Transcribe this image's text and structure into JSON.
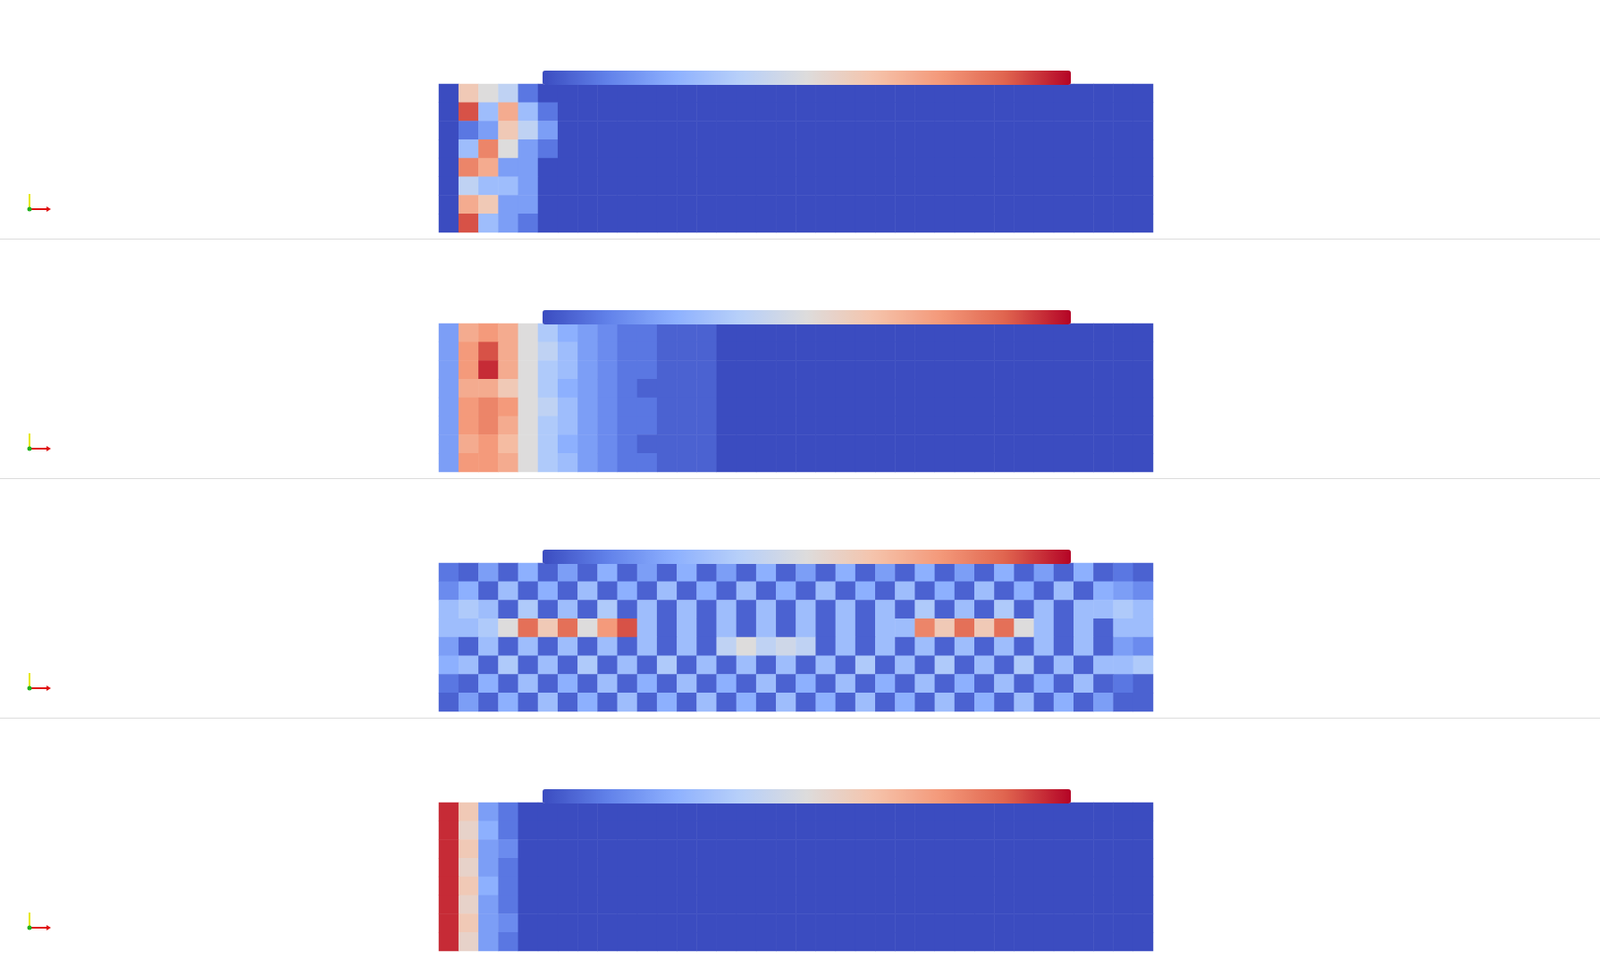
{
  "chart_data": [
    {
      "type": "heatmap",
      "tick_labels": false,
      "color_range": [
        0,
        1
      ],
      "cells": [
        [
          0,
          0.6,
          0.5,
          0.4,
          0.1,
          0,
          0,
          0,
          0,
          0,
          0,
          0,
          0,
          0,
          0,
          0,
          0,
          0,
          0,
          0,
          0,
          0,
          0,
          0,
          0,
          0,
          0,
          0,
          0,
          0,
          0,
          0,
          0,
          0,
          0,
          0
        ],
        [
          0,
          0.9,
          0.3,
          0.7,
          0.3,
          0.1,
          0,
          0,
          0,
          0,
          0,
          0,
          0,
          0,
          0,
          0,
          0,
          0,
          0,
          0,
          0,
          0,
          0,
          0,
          0,
          0,
          0,
          0,
          0,
          0,
          0,
          0,
          0,
          0,
          0,
          0
        ],
        [
          0,
          0.1,
          0.2,
          0.6,
          0.4,
          0.2,
          0,
          0,
          0,
          0,
          0,
          0,
          0,
          0,
          0,
          0,
          0,
          0,
          0,
          0,
          0,
          0,
          0,
          0,
          0,
          0,
          0,
          0,
          0,
          0,
          0,
          0,
          0,
          0,
          0,
          0
        ],
        [
          0,
          0.3,
          0.8,
          0.5,
          0.2,
          0.1,
          0,
          0,
          0,
          0,
          0,
          0,
          0,
          0,
          0,
          0,
          0,
          0,
          0,
          0,
          0,
          0,
          0,
          0,
          0,
          0,
          0,
          0,
          0,
          0,
          0,
          0,
          0,
          0,
          0,
          0
        ],
        [
          0,
          0.8,
          0.7,
          0.2,
          0.2,
          0,
          0,
          0,
          0,
          0,
          0,
          0,
          0,
          0,
          0,
          0,
          0,
          0,
          0,
          0,
          0,
          0,
          0,
          0,
          0,
          0,
          0,
          0,
          0,
          0,
          0,
          0,
          0,
          0,
          0,
          0
        ],
        [
          0,
          0.4,
          0.3,
          0.3,
          0.2,
          0,
          0,
          0,
          0,
          0,
          0,
          0,
          0,
          0,
          0,
          0,
          0,
          0,
          0,
          0,
          0,
          0,
          0,
          0,
          0,
          0,
          0,
          0,
          0,
          0,
          0,
          0,
          0,
          0,
          0,
          0
        ],
        [
          0,
          0.7,
          0.6,
          0.2,
          0.2,
          0,
          0,
          0,
          0,
          0,
          0,
          0,
          0,
          0,
          0,
          0,
          0,
          0,
          0,
          0,
          0,
          0,
          0,
          0,
          0,
          0,
          0,
          0,
          0,
          0,
          0,
          0,
          0,
          0,
          0,
          0
        ],
        [
          0,
          0.9,
          0.3,
          0.2,
          0.1,
          0,
          0,
          0,
          0,
          0,
          0,
          0,
          0,
          0,
          0,
          0,
          0,
          0,
          0,
          0,
          0,
          0,
          0,
          0,
          0,
          0,
          0,
          0,
          0,
          0,
          0,
          0,
          0,
          0,
          0,
          0
        ]
      ]
    },
    {
      "type": "heatmap",
      "tick_labels": false,
      "color_range": [
        0,
        1
      ],
      "cells": [
        [
          0.2,
          0.7,
          0.75,
          0.7,
          0.5,
          0.35,
          0.25,
          0.2,
          0.15,
          0.1,
          0.1,
          0.05,
          0.05,
          0.05,
          0,
          0,
          0,
          0,
          0,
          0,
          0,
          0,
          0,
          0,
          0,
          0,
          0,
          0,
          0,
          0,
          0,
          0,
          0,
          0,
          0,
          0
        ],
        [
          0.2,
          0.75,
          0.9,
          0.7,
          0.5,
          0.4,
          0.3,
          0.2,
          0.15,
          0.1,
          0.1,
          0.05,
          0.05,
          0.05,
          0,
          0,
          0,
          0,
          0,
          0,
          0,
          0,
          0,
          0,
          0,
          0,
          0,
          0,
          0,
          0,
          0,
          0,
          0,
          0,
          0,
          0
        ],
        [
          0.2,
          0.75,
          0.95,
          0.7,
          0.5,
          0.35,
          0.3,
          0.2,
          0.15,
          0.1,
          0.1,
          0.05,
          0.05,
          0.05,
          0,
          0,
          0,
          0,
          0,
          0,
          0,
          0,
          0,
          0,
          0,
          0,
          0,
          0,
          0,
          0,
          0,
          0,
          0,
          0,
          0,
          0
        ],
        [
          0.2,
          0.7,
          0.7,
          0.6,
          0.5,
          0.35,
          0.25,
          0.2,
          0.15,
          0.1,
          0.05,
          0.05,
          0.05,
          0.05,
          0,
          0,
          0,
          0,
          0,
          0,
          0,
          0,
          0,
          0,
          0,
          0,
          0,
          0,
          0,
          0,
          0,
          0,
          0,
          0,
          0,
          0
        ],
        [
          0.2,
          0.75,
          0.8,
          0.75,
          0.5,
          0.4,
          0.3,
          0.2,
          0.15,
          0.1,
          0.1,
          0.05,
          0.05,
          0.05,
          0,
          0,
          0,
          0,
          0,
          0,
          0,
          0,
          0,
          0,
          0,
          0,
          0,
          0,
          0,
          0,
          0,
          0,
          0,
          0,
          0,
          0
        ],
        [
          0.2,
          0.75,
          0.8,
          0.7,
          0.5,
          0.35,
          0.3,
          0.2,
          0.15,
          0.1,
          0.1,
          0.05,
          0.05,
          0.05,
          0,
          0,
          0,
          0,
          0,
          0,
          0,
          0,
          0,
          0,
          0,
          0,
          0,
          0,
          0,
          0,
          0,
          0,
          0,
          0,
          0,
          0
        ],
        [
          0.2,
          0.7,
          0.75,
          0.65,
          0.5,
          0.35,
          0.25,
          0.2,
          0.15,
          0.1,
          0.05,
          0.05,
          0.05,
          0.05,
          0,
          0,
          0,
          0,
          0,
          0,
          0,
          0,
          0,
          0,
          0,
          0,
          0,
          0,
          0,
          0,
          0,
          0,
          0,
          0,
          0,
          0
        ],
        [
          0.2,
          0.75,
          0.75,
          0.7,
          0.5,
          0.35,
          0.3,
          0.2,
          0.15,
          0.1,
          0.1,
          0.05,
          0.05,
          0.05,
          0,
          0,
          0,
          0,
          0,
          0,
          0,
          0,
          0,
          0,
          0,
          0,
          0,
          0,
          0,
          0,
          0,
          0,
          0,
          0,
          0,
          0
        ]
      ]
    },
    {
      "type": "heatmap",
      "tick_labels": false,
      "color_range": [
        0,
        1
      ],
      "cells": [
        [
          0.1,
          0.05,
          0.2,
          0.05,
          0.25,
          0.05,
          0.2,
          0.05,
          0.25,
          0.05,
          0.2,
          0.05,
          0.25,
          0.05,
          0.2,
          0.05,
          0.25,
          0.05,
          0.2,
          0.05,
          0.25,
          0.05,
          0.2,
          0.05,
          0.25,
          0.05,
          0.2,
          0.05,
          0.25,
          0.05,
          0.2,
          0.05,
          0.25,
          0.05,
          0.1,
          0.05
        ],
        [
          0.15,
          0.25,
          0.05,
          0.3,
          0.05,
          0.25,
          0.05,
          0.3,
          0.05,
          0.25,
          0.05,
          0.3,
          0.05,
          0.25,
          0.05,
          0.3,
          0.05,
          0.25,
          0.05,
          0.3,
          0.05,
          0.25,
          0.05,
          0.3,
          0.05,
          0.25,
          0.05,
          0.3,
          0.05,
          0.25,
          0.05,
          0.3,
          0.05,
          0.25,
          0.2,
          0.15
        ],
        [
          0.3,
          0.35,
          0.3,
          0.05,
          0.35,
          0.05,
          0.3,
          0.05,
          0.35,
          0.05,
          0.3,
          0.05,
          0.3,
          0.05,
          0.3,
          0.05,
          0.3,
          0.05,
          0.3,
          0.05,
          0.3,
          0.05,
          0.3,
          0.05,
          0.35,
          0.05,
          0.3,
          0.05,
          0.35,
          0.05,
          0.3,
          0.05,
          0.3,
          0.3,
          0.35,
          0.3
        ],
        [
          0.3,
          0.3,
          0.35,
          0.5,
          0.85,
          0.6,
          0.85,
          0.5,
          0.75,
          0.9,
          0.3,
          0.05,
          0.3,
          0.05,
          0.3,
          0.05,
          0.3,
          0.05,
          0.3,
          0.05,
          0.3,
          0.05,
          0.3,
          0.3,
          0.8,
          0.6,
          0.85,
          0.6,
          0.85,
          0.5,
          0.3,
          0.05,
          0.3,
          0.05,
          0.3,
          0.3
        ],
        [
          0.2,
          0.05,
          0.3,
          0.05,
          0.3,
          0.05,
          0.3,
          0.05,
          0.3,
          0.05,
          0.3,
          0.05,
          0.3,
          0.05,
          0.4,
          0.5,
          0.4,
          0.45,
          0.4,
          0.05,
          0.3,
          0.05,
          0.3,
          0.05,
          0.3,
          0.05,
          0.3,
          0.05,
          0.3,
          0.05,
          0.3,
          0.05,
          0.3,
          0.05,
          0.2,
          0.15
        ],
        [
          0.25,
          0.3,
          0.05,
          0.35,
          0.05,
          0.3,
          0.05,
          0.35,
          0.05,
          0.3,
          0.05,
          0.35,
          0.05,
          0.3,
          0.05,
          0.3,
          0.05,
          0.3,
          0.05,
          0.3,
          0.05,
          0.35,
          0.05,
          0.3,
          0.05,
          0.35,
          0.05,
          0.3,
          0.05,
          0.35,
          0.05,
          0.3,
          0.05,
          0.3,
          0.3,
          0.35
        ],
        [
          0.1,
          0.05,
          0.25,
          0.05,
          0.3,
          0.05,
          0.25,
          0.05,
          0.3,
          0.05,
          0.25,
          0.05,
          0.3,
          0.05,
          0.25,
          0.05,
          0.3,
          0.05,
          0.25,
          0.05,
          0.3,
          0.05,
          0.25,
          0.05,
          0.3,
          0.05,
          0.25,
          0.05,
          0.3,
          0.05,
          0.25,
          0.05,
          0.3,
          0.05,
          0.1,
          0.05
        ],
        [
          0.05,
          0.2,
          0.05,
          0.25,
          0.05,
          0.3,
          0.05,
          0.25,
          0.05,
          0.3,
          0.05,
          0.25,
          0.05,
          0.3,
          0.05,
          0.25,
          0.05,
          0.3,
          0.05,
          0.25,
          0.05,
          0.3,
          0.05,
          0.25,
          0.05,
          0.3,
          0.05,
          0.25,
          0.05,
          0.3,
          0.05,
          0.25,
          0.05,
          0.2,
          0.05,
          0.05
        ]
      ]
    },
    {
      "type": "heatmap",
      "tick_labels": false,
      "color_range": [
        0,
        1
      ],
      "cells": [
        [
          0.95,
          0.6,
          0.2,
          0.1,
          0,
          0,
          0,
          0,
          0,
          0,
          0,
          0,
          0,
          0,
          0,
          0,
          0,
          0,
          0,
          0,
          0,
          0,
          0,
          0,
          0,
          0,
          0,
          0,
          0,
          0,
          0,
          0,
          0,
          0,
          0,
          0
        ],
        [
          0.95,
          0.55,
          0.25,
          0.1,
          0,
          0,
          0,
          0,
          0,
          0,
          0,
          0,
          0,
          0,
          0,
          0,
          0,
          0,
          0,
          0,
          0,
          0,
          0,
          0,
          0,
          0,
          0,
          0,
          0,
          0,
          0,
          0,
          0,
          0,
          0,
          0
        ],
        [
          0.95,
          0.6,
          0.2,
          0.15,
          0,
          0,
          0,
          0,
          0,
          0,
          0,
          0,
          0,
          0,
          0,
          0,
          0,
          0,
          0,
          0,
          0,
          0,
          0,
          0,
          0,
          0,
          0,
          0,
          0,
          0,
          0,
          0,
          0,
          0,
          0,
          0
        ],
        [
          0.95,
          0.55,
          0.2,
          0.1,
          0,
          0,
          0,
          0,
          0,
          0,
          0,
          0,
          0,
          0,
          0,
          0,
          0,
          0,
          0,
          0,
          0,
          0,
          0,
          0,
          0,
          0,
          0,
          0,
          0,
          0,
          0,
          0,
          0,
          0,
          0,
          0
        ],
        [
          0.95,
          0.6,
          0.25,
          0.1,
          0,
          0,
          0,
          0,
          0,
          0,
          0,
          0,
          0,
          0,
          0,
          0,
          0,
          0,
          0,
          0,
          0,
          0,
          0,
          0,
          0,
          0,
          0,
          0,
          0,
          0,
          0,
          0,
          0,
          0,
          0,
          0
        ],
        [
          0.95,
          0.55,
          0.2,
          0.1,
          0,
          0,
          0,
          0,
          0,
          0,
          0,
          0,
          0,
          0,
          0,
          0,
          0,
          0,
          0,
          0,
          0,
          0,
          0,
          0,
          0,
          0,
          0,
          0,
          0,
          0,
          0,
          0,
          0,
          0,
          0,
          0
        ],
        [
          0.95,
          0.6,
          0.2,
          0.15,
          0,
          0,
          0,
          0,
          0,
          0,
          0,
          0,
          0,
          0,
          0,
          0,
          0,
          0,
          0,
          0,
          0,
          0,
          0,
          0,
          0,
          0,
          0,
          0,
          0,
          0,
          0,
          0,
          0,
          0,
          0,
          0
        ],
        [
          0.95,
          0.55,
          0.2,
          0.1,
          0,
          0,
          0,
          0,
          0,
          0,
          0,
          0,
          0,
          0,
          0,
          0,
          0,
          0,
          0,
          0,
          0,
          0,
          0,
          0,
          0,
          0,
          0,
          0,
          0,
          0,
          0,
          0,
          0,
          0,
          0,
          0
        ]
      ]
    }
  ]
}
